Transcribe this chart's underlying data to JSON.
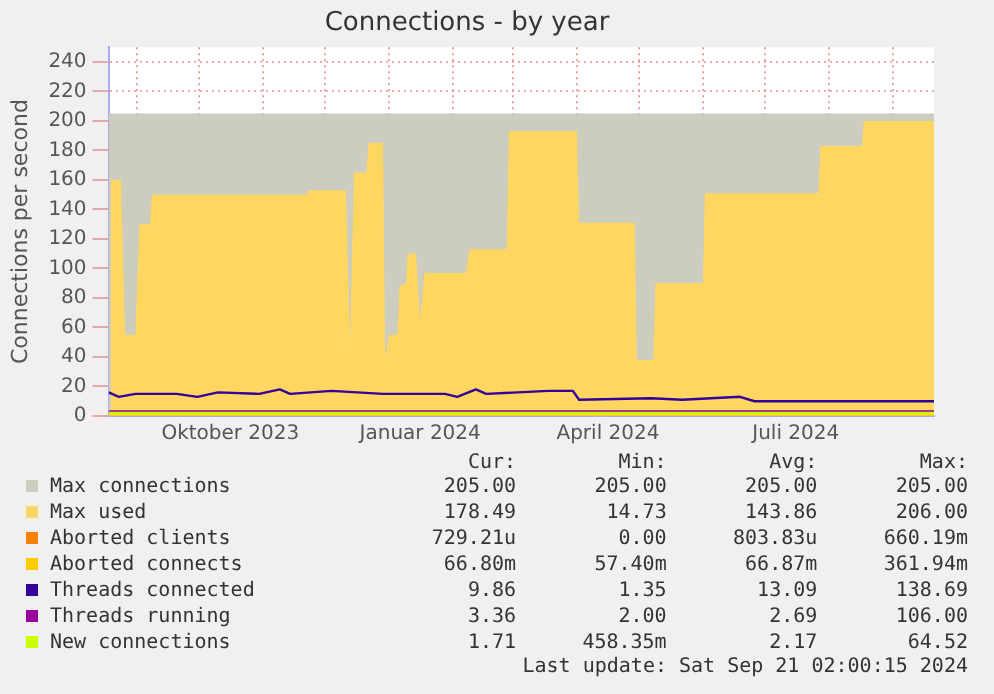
{
  "chart_data": {
    "type": "area",
    "title": "Connections - by year",
    "ylabel": "Connections per second",
    "xlim": [
      "2023-08-18",
      "2024-09-21"
    ],
    "xticks": [
      {
        "value": "2023-09-01",
        "label": null
      },
      {
        "value": "2023-10-01",
        "label": null
      },
      {
        "value": "2023-10-16",
        "label": "Oktober 2023"
      },
      {
        "value": "2023-11-01",
        "label": null
      },
      {
        "value": "2023-12-01",
        "label": null
      },
      {
        "value": "2024-01-01",
        "label": null
      },
      {
        "value": "2024-01-16",
        "label": "Januar 2024"
      },
      {
        "value": "2024-02-01",
        "label": null
      },
      {
        "value": "2024-03-01",
        "label": null
      },
      {
        "value": "2024-04-01",
        "label": null
      },
      {
        "value": "2024-04-16",
        "label": "April 2024"
      },
      {
        "value": "2024-05-01",
        "label": null
      },
      {
        "value": "2024-06-01",
        "label": null
      },
      {
        "value": "2024-07-01",
        "label": null
      },
      {
        "value": "2024-07-16",
        "label": "Juli 2024"
      },
      {
        "value": "2024-08-01",
        "label": null
      },
      {
        "value": "2024-09-01",
        "label": null
      }
    ],
    "ylim": [
      0,
      250
    ],
    "yticks": [
      0,
      20,
      40,
      60,
      80,
      100,
      120,
      140,
      160,
      180,
      200,
      220,
      240
    ],
    "grid": true,
    "legend": "bottom",
    "marker": "none",
    "line_style": "solid",
    "series": [
      {
        "name": "Max connections",
        "color": "#ccccbf",
        "x": [
          "2023-08-18",
          "2024-09-21"
        ],
        "values": [
          205,
          205
        ]
      },
      {
        "name": "Max used",
        "color": "#ffd660",
        "x": [
          "2023-08-19",
          "2023-08-24",
          "2023-08-26",
          "2023-08-31",
          "2023-09-02",
          "2023-09-07",
          "2023-09-08",
          "2023-11-22",
          "2023-11-23",
          "2023-12-11",
          "2023-12-13",
          "2023-12-15",
          "2023-12-21",
          "2023-12-22",
          "2023-12-29",
          "2023-12-30",
          "2024-01-01",
          "2024-01-05",
          "2024-01-06",
          "2024-01-09",
          "2024-01-10",
          "2024-01-14",
          "2024-01-16",
          "2024-01-18",
          "2024-02-07",
          "2024-02-09",
          "2024-02-27",
          "2024-02-28",
          "2024-04-01",
          "2024-04-02",
          "2024-04-29",
          "2024-04-30",
          "2024-05-08",
          "2024-05-09",
          "2024-06-01",
          "2024-06-02",
          "2024-07-27",
          "2024-07-28",
          "2024-08-17",
          "2024-08-18",
          "2024-09-21"
        ],
        "values": [
          160,
          160,
          55,
          55,
          130,
          130,
          150,
          150,
          153,
          153,
          50,
          165,
          165,
          185,
          185,
          40,
          55,
          55,
          88,
          90,
          110,
          110,
          65,
          97,
          97,
          113,
          113,
          193,
          193,
          131,
          131,
          38,
          38,
          90,
          90,
          151,
          151,
          183,
          183,
          200,
          200
        ]
      },
      {
        "name": "Aborted clients",
        "type": "line",
        "color": "#ff7f00"
      },
      {
        "name": "Aborted connects",
        "type": "line",
        "color": "#ffcc00",
        "x": [
          "2023-08-18",
          "2024-09-21"
        ],
        "values": [
          0,
          0
        ]
      },
      {
        "name": "Threads connected",
        "type": "line",
        "color": "#330099",
        "x": [
          "2023-08-18",
          "2023-08-23",
          "2023-08-31",
          "2023-09-20",
          "2023-09-30",
          "2023-10-10",
          "2023-10-30",
          "2023-11-09",
          "2023-11-14",
          "2023-12-04",
          "2023-12-29",
          "2024-01-28",
          "2024-02-03",
          "2024-02-12",
          "2024-02-17",
          "2024-03-18",
          "2024-03-30",
          "2024-04-02",
          "2024-05-07",
          "2024-05-22",
          "2024-06-19",
          "2024-06-26",
          "2024-09-21"
        ],
        "values": [
          16,
          13,
          15,
          15,
          13,
          16,
          15,
          18,
          15,
          17,
          15,
          15,
          13,
          18,
          15,
          17,
          17,
          11,
          12,
          11,
          13,
          10,
          10
        ]
      },
      {
        "name": "Threads running",
        "type": "line",
        "color": "#990099",
        "x": [
          "2023-08-18",
          "2024-09-21"
        ],
        "values": [
          3,
          3
        ]
      },
      {
        "name": "New connections",
        "type": "line",
        "color": "#ccff00",
        "x": [
          "2023-08-18",
          "2024-09-21"
        ],
        "values": [
          2,
          2
        ]
      }
    ],
    "annotations": [
      "Cur:",
      "Min:",
      "Avg:",
      "Max:",
      "205.00",
      "205.00",
      "205.00",
      "205.00",
      "178.49",
      "14.73",
      "143.86",
      "206.00",
      "729.21u",
      "0.00",
      "803.83u",
      "660.19m",
      "66.80m",
      "57.40m",
      "66.87m",
      "361.94m",
      "9.86",
      "1.35",
      "13.09",
      "138.69",
      "3.36",
      "2.00",
      "2.69",
      "106.00",
      "1.71",
      "458.35m",
      "2.17",
      "64.52",
      "Last update: Sat Sep 21 02:00:15 2024"
    ]
  }
}
